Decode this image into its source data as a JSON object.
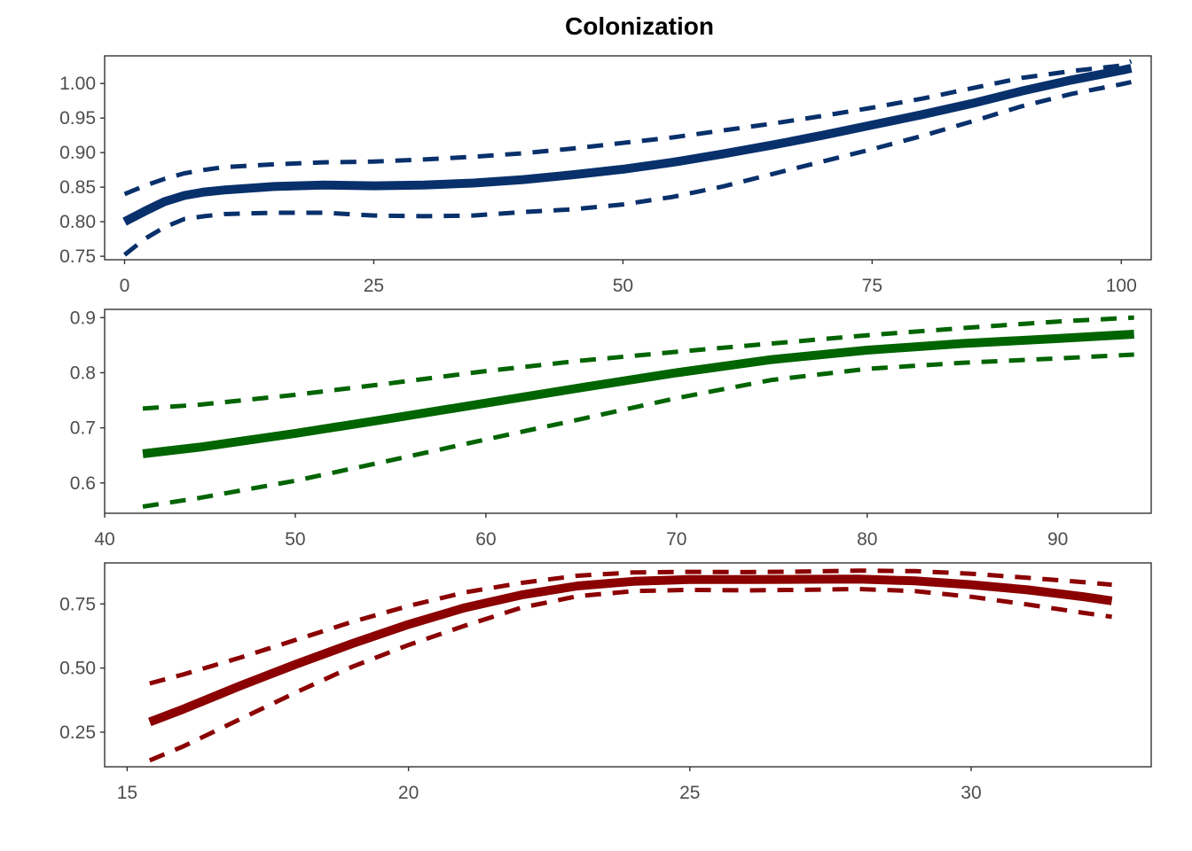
{
  "chart_data": [
    {
      "type": "line",
      "title": "Colonization",
      "xlabel": "",
      "ylabel": "",
      "xlim": [
        -2,
        103
      ],
      "ylim": [
        0.745,
        1.04
      ],
      "xticks": [
        0,
        25,
        50,
        75,
        100
      ],
      "xtick_labels": [
        "0",
        "25",
        "50",
        "75",
        "100"
      ],
      "yticks": [
        0.75,
        0.8,
        0.85,
        0.9,
        0.95,
        1.0
      ],
      "ytick_labels": [
        "0.75",
        "0.80",
        "0.85",
        "0.90",
        "0.95",
        "1.00"
      ],
      "color": "#08306b",
      "grid": false,
      "legend": "none",
      "series": [
        {
          "role": "estimate",
          "x": [
            0,
            2,
            4,
            6,
            8,
            10,
            15,
            20,
            25,
            30,
            35,
            40,
            45,
            50,
            55,
            60,
            65,
            70,
            75,
            80,
            85,
            90,
            95,
            100,
            101
          ],
          "y": [
            0.8,
            0.815,
            0.829,
            0.838,
            0.843,
            0.846,
            0.851,
            0.853,
            0.852,
            0.853,
            0.856,
            0.861,
            0.868,
            0.876,
            0.886,
            0.898,
            0.911,
            0.925,
            0.94,
            0.955,
            0.971,
            0.989,
            1.005,
            1.019,
            1.022
          ]
        },
        {
          "role": "upper",
          "x": [
            0,
            2,
            4,
            6,
            8,
            10,
            15,
            20,
            25,
            30,
            35,
            40,
            45,
            50,
            55,
            60,
            65,
            70,
            75,
            80,
            85,
            90,
            95,
            100,
            101
          ],
          "y": [
            0.84,
            0.852,
            0.862,
            0.87,
            0.875,
            0.879,
            0.883,
            0.886,
            0.887,
            0.89,
            0.894,
            0.899,
            0.906,
            0.914,
            0.922,
            0.932,
            0.942,
            0.953,
            0.965,
            0.978,
            0.993,
            1.008,
            1.018,
            1.026,
            1.032
          ]
        },
        {
          "role": "lower",
          "x": [
            0,
            2,
            4,
            6,
            8,
            10,
            15,
            20,
            25,
            30,
            35,
            40,
            45,
            50,
            55,
            60,
            65,
            70,
            75,
            80,
            85,
            90,
            95,
            100,
            101
          ],
          "y": [
            0.752,
            0.775,
            0.792,
            0.804,
            0.808,
            0.811,
            0.813,
            0.813,
            0.809,
            0.808,
            0.809,
            0.814,
            0.818,
            0.825,
            0.836,
            0.851,
            0.869,
            0.887,
            0.905,
            0.924,
            0.945,
            0.967,
            0.985,
            0.999,
            1.002
          ]
        }
      ]
    },
    {
      "type": "line",
      "xlabel": "",
      "ylabel": "",
      "xlim": [
        40,
        94.9
      ],
      "ylim": [
        0.545,
        0.915
      ],
      "xticks": [
        40,
        50,
        60,
        70,
        80,
        90
      ],
      "xtick_labels": [
        "40",
        "50",
        "60",
        "70",
        "80",
        "90"
      ],
      "yticks": [
        0.6,
        0.7,
        0.8,
        0.9
      ],
      "ytick_labels": [
        "0.6",
        "0.7",
        "0.8",
        "0.9"
      ],
      "color": "#006400",
      "grid": false,
      "legend": "none",
      "series": [
        {
          "role": "estimate",
          "x": [
            42,
            45,
            50,
            55,
            60,
            65,
            70,
            75,
            80,
            85,
            90,
            94
          ],
          "y": [
            0.653,
            0.665,
            0.69,
            0.717,
            0.745,
            0.773,
            0.8,
            0.824,
            0.841,
            0.853,
            0.862,
            0.87
          ]
        },
        {
          "role": "upper",
          "x": [
            42,
            45,
            50,
            55,
            60,
            65,
            70,
            75,
            80,
            85,
            90,
            94
          ],
          "y": [
            0.735,
            0.742,
            0.76,
            0.781,
            0.803,
            0.822,
            0.838,
            0.853,
            0.868,
            0.881,
            0.893,
            0.9
          ]
        },
        {
          "role": "lower",
          "x": [
            42,
            45,
            50,
            55,
            60,
            65,
            70,
            75,
            80,
            85,
            90,
            94
          ],
          "y": [
            0.557,
            0.573,
            0.604,
            0.641,
            0.679,
            0.716,
            0.754,
            0.787,
            0.807,
            0.818,
            0.826,
            0.833
          ]
        }
      ]
    },
    {
      "type": "line",
      "xlabel": "",
      "ylabel": "",
      "xlim": [
        14.6,
        33.2
      ],
      "ylim": [
        0.115,
        0.91
      ],
      "xticks": [
        15,
        20,
        25,
        30
      ],
      "xtick_labels": [
        "15",
        "20",
        "25",
        "30"
      ],
      "yticks": [
        0.25,
        0.5,
        0.75
      ],
      "ytick_labels": [
        "0.25",
        "0.50",
        "0.75"
      ],
      "color": "#8b0000",
      "grid": false,
      "legend": "none",
      "series": [
        {
          "role": "estimate",
          "x": [
            15.4,
            16,
            17,
            18,
            19,
            20,
            21,
            22,
            23,
            24,
            25,
            26,
            27,
            28,
            29,
            30,
            31,
            32,
            32.5
          ],
          "y": [
            0.29,
            0.34,
            0.43,
            0.515,
            0.595,
            0.67,
            0.735,
            0.785,
            0.82,
            0.838,
            0.845,
            0.845,
            0.846,
            0.847,
            0.84,
            0.825,
            0.805,
            0.778,
            0.762
          ]
        },
        {
          "role": "upper",
          "x": [
            15.4,
            16,
            17,
            18,
            19,
            20,
            21,
            22,
            23,
            24,
            25,
            26,
            27,
            28,
            29,
            30,
            31,
            32,
            32.5
          ],
          "y": [
            0.44,
            0.475,
            0.54,
            0.61,
            0.68,
            0.742,
            0.795,
            0.832,
            0.86,
            0.873,
            0.875,
            0.874,
            0.876,
            0.88,
            0.878,
            0.868,
            0.852,
            0.835,
            0.825
          ]
        },
        {
          "role": "lower",
          "x": [
            15.4,
            16,
            17,
            18,
            19,
            20,
            21,
            22,
            23,
            24,
            25,
            26,
            27,
            28,
            29,
            30,
            31,
            32,
            32.5
          ],
          "y": [
            0.14,
            0.195,
            0.3,
            0.405,
            0.505,
            0.59,
            0.665,
            0.735,
            0.78,
            0.8,
            0.805,
            0.803,
            0.805,
            0.808,
            0.8,
            0.778,
            0.748,
            0.715,
            0.7
          ]
        }
      ]
    }
  ]
}
